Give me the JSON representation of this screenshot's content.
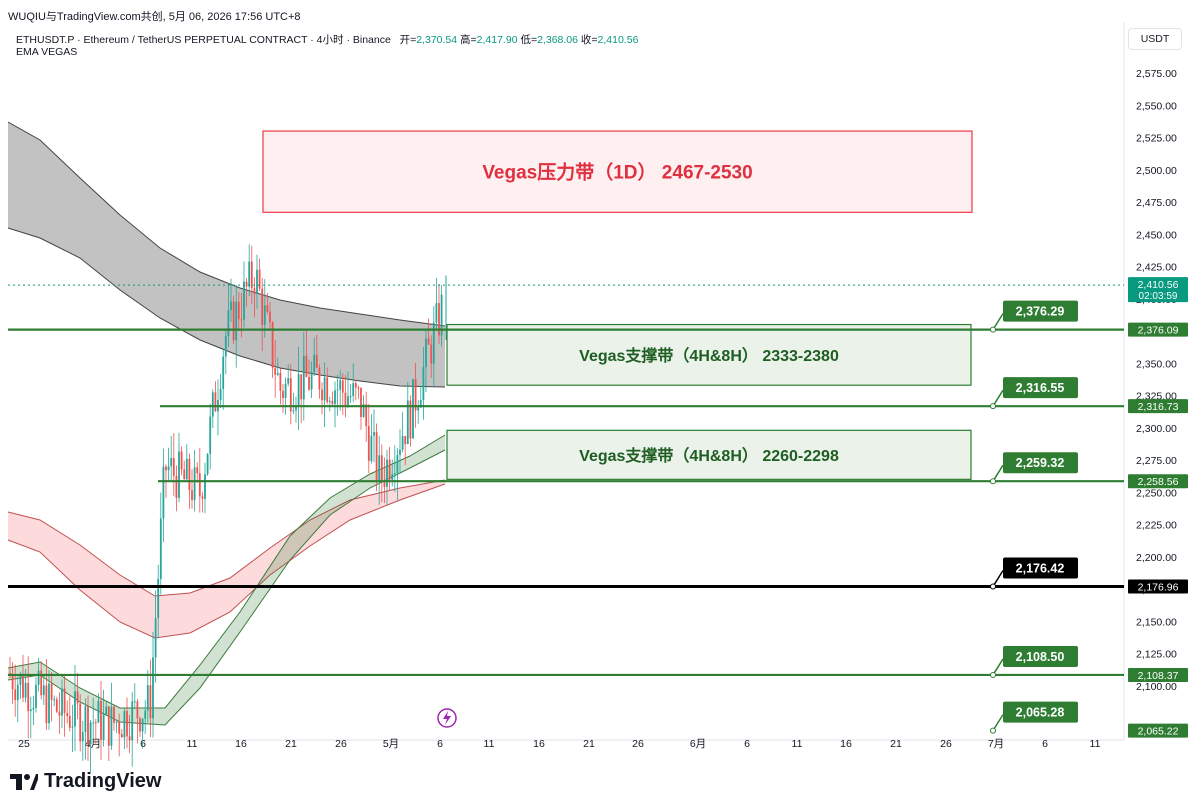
{
  "header": {
    "caption": "WUQIU与TradingView.com共创,  5月 06, 2026 17:56 UTC+8"
  },
  "symbol": {
    "desc": "ETHUSDT.P · Ethereum / TetherUS PERPETUAL CONTRACT · 4小时 · Binance",
    "open_label": "开=",
    "open": "2,370.54",
    "high_label": "高=",
    "high": "2,417.90",
    "low_label": "低=",
    "low": "2,368.06",
    "close_label": "收=",
    "close": "2,410.56"
  },
  "indicator": {
    "name": "EMA VEGAS"
  },
  "currency": "USDT",
  "brand": {
    "name": "TradingView"
  },
  "colors": {
    "green": "#2e7d32",
    "red": "#f23645",
    "up": "#26a69a",
    "down": "#ef5350",
    "black": "#000000"
  },
  "chart_data": {
    "type": "candlestick",
    "y_ticks": [
      "2,575.00",
      "2,550.00",
      "2,525.00",
      "2,500.00",
      "2,475.00",
      "2,450.00",
      "2,425.00",
      "2,400.00",
      "2,375.00",
      "2,350.00",
      "2,325.00",
      "2,300.00",
      "2,275.00",
      "2,250.00",
      "2,225.00",
      "2,200.00",
      "2,175.00",
      "2,150.00",
      "2,125.00",
      "2,100.00"
    ],
    "x_ticks": [
      "25",
      "4月",
      "6",
      "11",
      "16",
      "21",
      "26",
      "5月",
      "6",
      "11",
      "16",
      "21",
      "26",
      "6月",
      "6",
      "11",
      "16",
      "21",
      "26",
      "7月",
      "6",
      "11"
    ],
    "ylim": [
      2060,
      2590
    ],
    "current_price": {
      "value": "2,410.56",
      "countdown": "02:03:59"
    },
    "zones": [
      {
        "label": "Vegas压力带（1D） 2467-2530",
        "low": 2467,
        "high": 2530,
        "kind": "resistance"
      },
      {
        "label": "Vegas支撑带（4H&8H） 2333-2380",
        "low": 2333,
        "high": 2380,
        "kind": "support"
      },
      {
        "label": "Vegas支撑带（4H&8H） 2260-2298",
        "low": 2260,
        "high": 2298,
        "kind": "support"
      }
    ],
    "levels": [
      {
        "value": 2376.09,
        "axis_label": "2,376.09",
        "flag": "2,376.29",
        "color": "green"
      },
      {
        "value": 2316.73,
        "axis_label": "2,316.73",
        "flag": "2,316.55",
        "color": "green"
      },
      {
        "value": 2258.56,
        "axis_label": "2,258.56",
        "flag": "2,259.32",
        "color": "green"
      },
      {
        "value": 2176.96,
        "axis_label": "2,176.96",
        "flag": "2,176.42",
        "color": "black"
      },
      {
        "value": 2108.37,
        "axis_label": "2,108.37",
        "flag": "2,108.50",
        "color": "green"
      },
      {
        "value": 2065.22,
        "axis_label": "2,065.22",
        "flag": "2,065.28",
        "color": "green"
      }
    ]
  }
}
